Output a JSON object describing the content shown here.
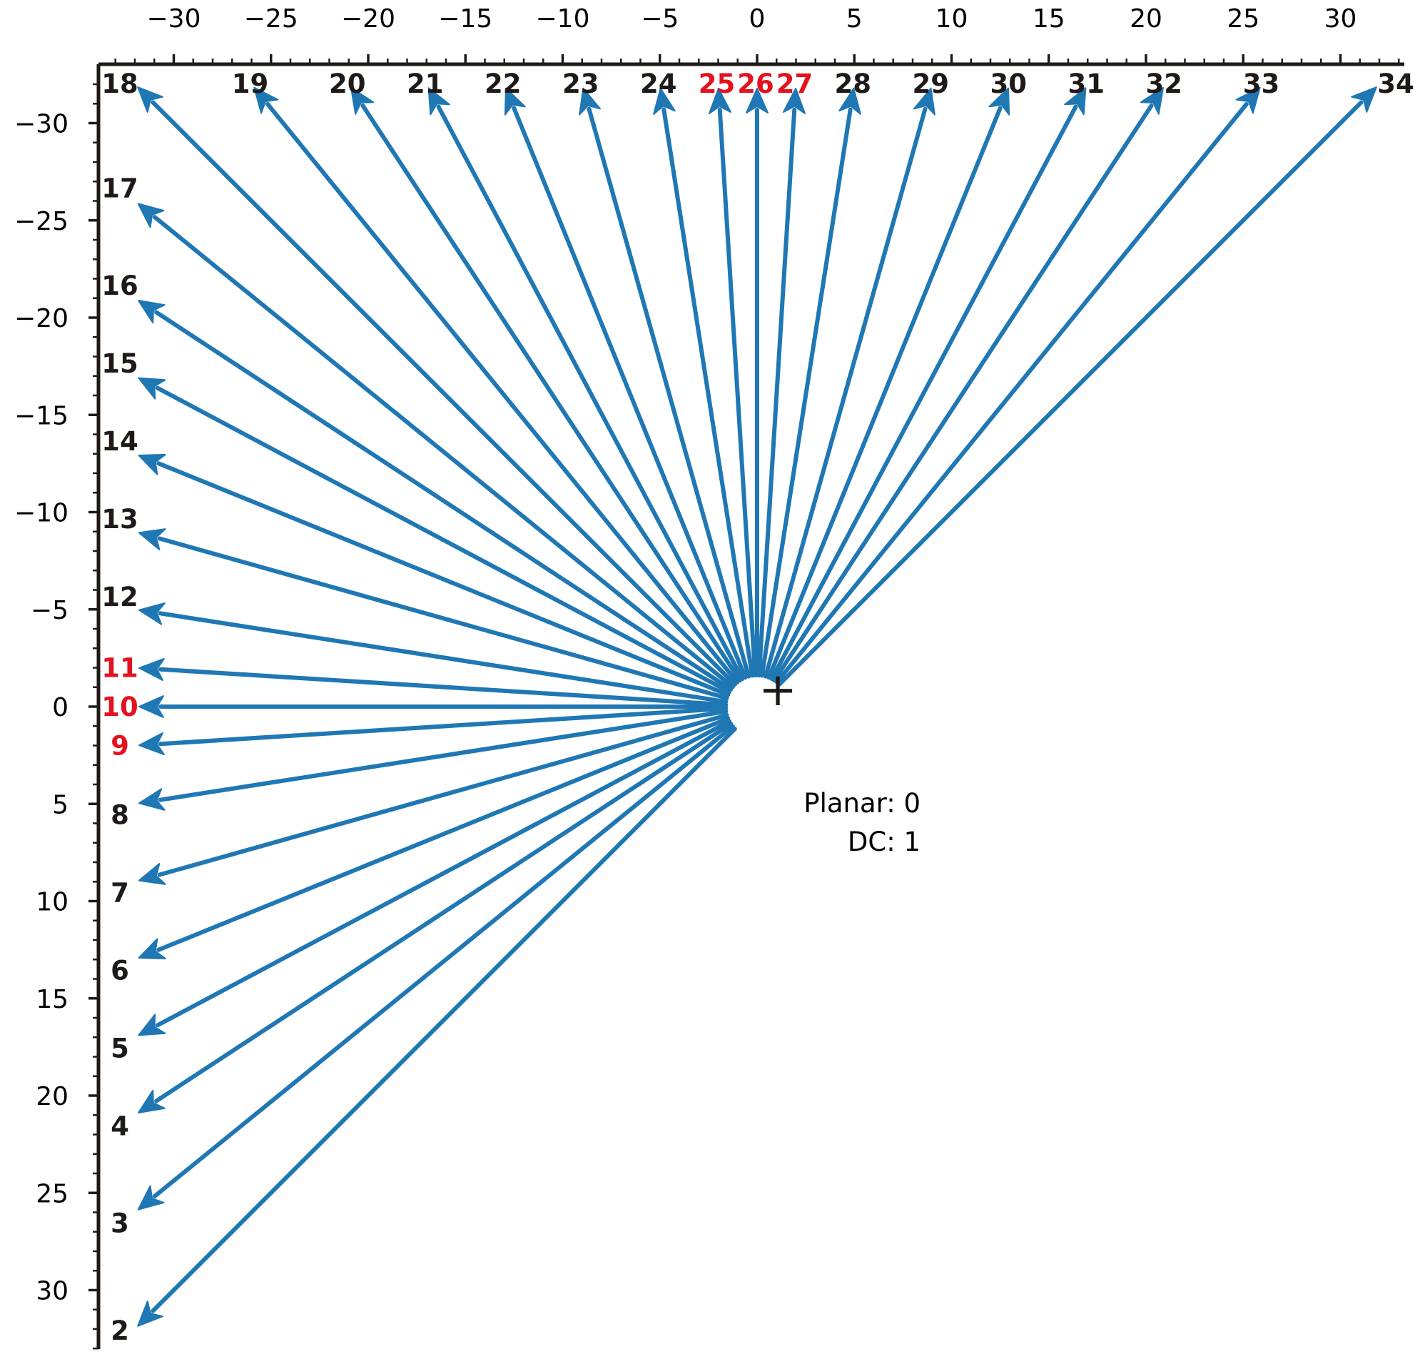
{
  "diagram": {
    "type": "intra-prediction-mode-directions",
    "axis": {
      "x_ticks": [
        "−30",
        "−25",
        "−20",
        "−15",
        "−10",
        "−5",
        "0",
        "5",
        "10",
        "15",
        "20",
        "25",
        "30"
      ],
      "y_ticks": [
        "−30",
        "−25",
        "−20",
        "−15",
        "−10",
        "−5",
        "0",
        "5",
        "10",
        "15",
        "20",
        "25",
        "30"
      ]
    },
    "colors": {
      "arrow": "#1f77b4",
      "label": "#1f1a17",
      "highlight": "#e3121e",
      "axis": "#1f1a17"
    },
    "center_marker": "+",
    "info": {
      "planar": "Planar: 0",
      "dc": "DC: 1"
    },
    "modes": [
      {
        "label": "2",
        "dx": -32,
        "dy": 32,
        "highlight": false
      },
      {
        "label": "3",
        "dx": -32,
        "dy": 26,
        "highlight": false
      },
      {
        "label": "4",
        "dx": -32,
        "dy": 21,
        "highlight": false
      },
      {
        "label": "5",
        "dx": -32,
        "dy": 17,
        "highlight": false
      },
      {
        "label": "6",
        "dx": -32,
        "dy": 13,
        "highlight": false
      },
      {
        "label": "7",
        "dx": -32,
        "dy": 9,
        "highlight": false
      },
      {
        "label": "8",
        "dx": -32,
        "dy": 5,
        "highlight": false
      },
      {
        "label": "9",
        "dx": -32,
        "dy": 2,
        "highlight": true
      },
      {
        "label": "10",
        "dx": -32,
        "dy": 0,
        "highlight": true
      },
      {
        "label": "11",
        "dx": -32,
        "dy": -2,
        "highlight": true
      },
      {
        "label": "12",
        "dx": -32,
        "dy": -5,
        "highlight": false
      },
      {
        "label": "13",
        "dx": -32,
        "dy": -9,
        "highlight": false
      },
      {
        "label": "14",
        "dx": -32,
        "dy": -13,
        "highlight": false
      },
      {
        "label": "15",
        "dx": -32,
        "dy": -17,
        "highlight": false
      },
      {
        "label": "16",
        "dx": -32,
        "dy": -21,
        "highlight": false
      },
      {
        "label": "17",
        "dx": -32,
        "dy": -26,
        "highlight": false
      },
      {
        "label": "18",
        "dx": -32,
        "dy": -32,
        "highlight": false
      },
      {
        "label": "19",
        "dx": -26,
        "dy": -32,
        "highlight": false
      },
      {
        "label": "20",
        "dx": -21,
        "dy": -32,
        "highlight": false
      },
      {
        "label": "21",
        "dx": -17,
        "dy": -32,
        "highlight": false
      },
      {
        "label": "22",
        "dx": -13,
        "dy": -32,
        "highlight": false
      },
      {
        "label": "23",
        "dx": -9,
        "dy": -32,
        "highlight": false
      },
      {
        "label": "24",
        "dx": -5,
        "dy": -32,
        "highlight": false
      },
      {
        "label": "25",
        "dx": -2,
        "dy": -32,
        "highlight": true
      },
      {
        "label": "26",
        "dx": 0,
        "dy": -32,
        "highlight": true
      },
      {
        "label": "27",
        "dx": 2,
        "dy": -32,
        "highlight": true
      },
      {
        "label": "28",
        "dx": 5,
        "dy": -32,
        "highlight": false
      },
      {
        "label": "29",
        "dx": 9,
        "dy": -32,
        "highlight": false
      },
      {
        "label": "30",
        "dx": 13,
        "dy": -32,
        "highlight": false
      },
      {
        "label": "31",
        "dx": 17,
        "dy": -32,
        "highlight": false
      },
      {
        "label": "32",
        "dx": 21,
        "dy": -32,
        "highlight": false
      },
      {
        "label": "33",
        "dx": 26,
        "dy": -32,
        "highlight": false
      },
      {
        "label": "34",
        "dx": 32,
        "dy": -32,
        "highlight": false
      }
    ]
  }
}
